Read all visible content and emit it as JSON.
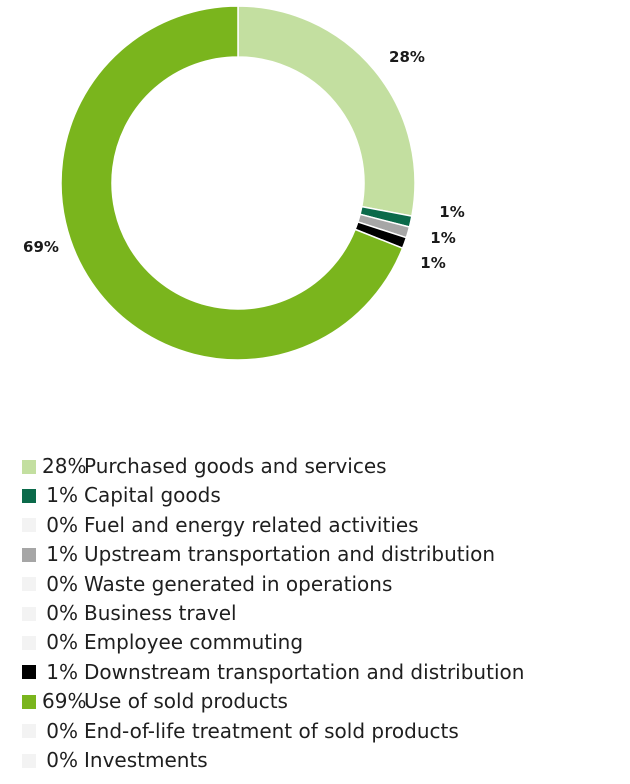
{
  "chart_data": {
    "type": "pie",
    "variant": "donut",
    "slices": [
      {
        "label": "Purchased goods and services",
        "percent_label": "28%",
        "value": 28,
        "color": "#c3dfa0",
        "show_label": true
      },
      {
        "label": "Capital goods",
        "percent_label": "1%",
        "value": 1,
        "color": "#0b6a4a",
        "show_label": true
      },
      {
        "label": "Fuel and energy related activities",
        "percent_label": "0%",
        "value": 0,
        "color": "#f3f3f3",
        "show_label": false
      },
      {
        "label": "Upstream transportation and distribution",
        "percent_label": "1%",
        "value": 1,
        "color": "#a6a6a6",
        "show_label": true
      },
      {
        "label": "Waste generated in operations",
        "percent_label": "0%",
        "value": 0,
        "color": "#f3f3f3",
        "show_label": false
      },
      {
        "label": "Business travel",
        "percent_label": "0%",
        "value": 0,
        "color": "#f3f3f3",
        "show_label": false
      },
      {
        "label": "Employee commuting",
        "percent_label": "0%",
        "value": 0,
        "color": "#f3f3f3",
        "show_label": false
      },
      {
        "label": "Downstream transportation and distribution",
        "percent_label": "1%",
        "value": 1,
        "color": "#000000",
        "show_label": true
      },
      {
        "label": "Use of sold products",
        "percent_label": "69%",
        "value": 69,
        "color": "#7ab51d",
        "show_label": true
      },
      {
        "label": "End-of-life treatment of sold products",
        "percent_label": "0%",
        "value": 0,
        "color": "#f3f3f3",
        "show_label": false
      },
      {
        "label": "Investments",
        "percent_label": "0%",
        "value": 0,
        "color": "#f3f3f3",
        "show_label": false
      }
    ],
    "legend_position": "bottom"
  }
}
